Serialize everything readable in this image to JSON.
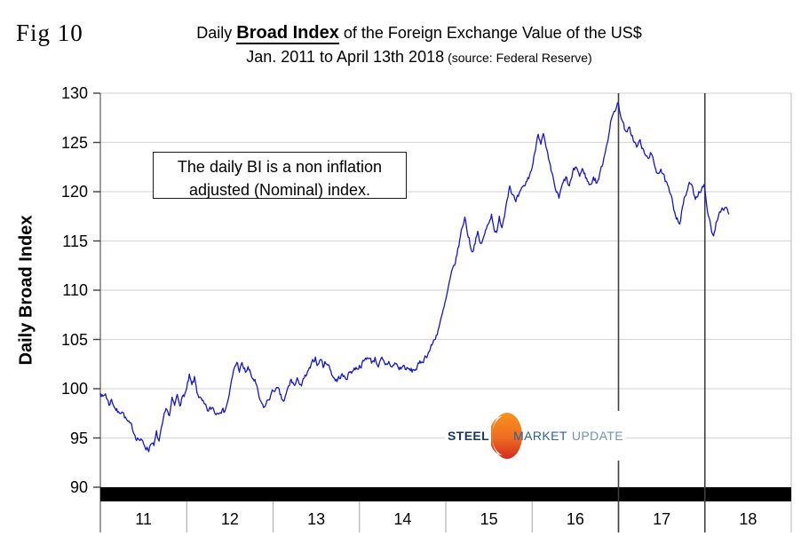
{
  "fig_label": "Fig 10",
  "title": {
    "prefix": "Daily",
    "emphasis": "Broad Index",
    "suffix": "of the Foreign Exchange Value of the US$"
  },
  "subtitle": {
    "range": "Jan. 2011 to April 13th 2018",
    "source": "(source: Federal Reserve)"
  },
  "annotation": {
    "line1": "The daily BI is a non inflation",
    "line2": "adjusted (Nominal) index."
  },
  "logo": {
    "word1": "STEEL",
    "word2": "MARKET",
    "word3": "UPDATE"
  },
  "chart_data": {
    "type": "line",
    "title": "Daily Broad Index of the Foreign Exchange Value of the US$",
    "subtitle": "Jan. 2011 to April 13th 2018",
    "source": "Federal Reserve",
    "ylabel": "Daily Broad Index",
    "xlabel": "",
    "ylim": [
      90,
      130
    ],
    "yticks": [
      90,
      95,
      100,
      105,
      110,
      115,
      120,
      125,
      130
    ],
    "xticks": [
      "11",
      "12",
      "13",
      "14",
      "15",
      "16",
      "17",
      "18"
    ],
    "x_range_years": [
      2011,
      2019
    ],
    "grid": "horizontal",
    "legend": "none",
    "line_color": "#1515d2",
    "grid_color": "#d9d9d9",
    "axis_color": "#737373",
    "separator_color": "#b3b3b3",
    "event_line_color": "#3f3f3f",
    "event_lines_x": [
      2017.0,
      2018.0
    ],
    "baseline_bar": {
      "value": 90,
      "color": "#000000"
    },
    "daily_noise": 0.3,
    "series": [
      {
        "name": "Daily Broad Index (Nominal)",
        "anchors": [
          [
            2011.0,
            99.8
          ],
          [
            2011.03,
            99.1
          ],
          [
            2011.06,
            99.5
          ],
          [
            2011.1,
            98.4
          ],
          [
            2011.13,
            98.9
          ],
          [
            2011.17,
            98.1
          ],
          [
            2011.21,
            97.5
          ],
          [
            2011.25,
            97.9
          ],
          [
            2011.29,
            97.0
          ],
          [
            2011.33,
            96.4
          ],
          [
            2011.37,
            96.0
          ],
          [
            2011.41,
            95.2
          ],
          [
            2011.45,
            94.9
          ],
          [
            2011.49,
            94.5
          ],
          [
            2011.53,
            94.1
          ],
          [
            2011.56,
            93.8
          ],
          [
            2011.59,
            94.7
          ],
          [
            2011.62,
            94.1
          ],
          [
            2011.65,
            95.4
          ],
          [
            2011.68,
            94.6
          ],
          [
            2011.71,
            95.8
          ],
          [
            2011.74,
            97.1
          ],
          [
            2011.77,
            98.0
          ],
          [
            2011.8,
            97.2
          ],
          [
            2011.83,
            98.8
          ],
          [
            2011.86,
            98.2
          ],
          [
            2011.89,
            99.3
          ],
          [
            2011.92,
            98.6
          ],
          [
            2011.96,
            99.2
          ],
          [
            2012.0,
            99.9
          ],
          [
            2012.03,
            101.2
          ],
          [
            2012.06,
            100.2
          ],
          [
            2012.09,
            101.0
          ],
          [
            2012.12,
            99.7
          ],
          [
            2012.16,
            98.9
          ],
          [
            2012.2,
            98.3
          ],
          [
            2012.25,
            97.7
          ],
          [
            2012.3,
            98.1
          ],
          [
            2012.34,
            97.5
          ],
          [
            2012.39,
            98.0
          ],
          [
            2012.43,
            97.7
          ],
          [
            2012.47,
            98.5
          ],
          [
            2012.51,
            100.2
          ],
          [
            2012.55,
            102.0
          ],
          [
            2012.58,
            102.7
          ],
          [
            2012.61,
            101.9
          ],
          [
            2012.64,
            102.4
          ],
          [
            2012.68,
            101.7
          ],
          [
            2012.71,
            102.1
          ],
          [
            2012.75,
            101.2
          ],
          [
            2012.79,
            100.8
          ],
          [
            2012.82,
            99.7
          ],
          [
            2012.86,
            98.4
          ],
          [
            2012.9,
            98.1
          ],
          [
            2012.94,
            98.8
          ],
          [
            2012.97,
            99.3
          ],
          [
            2013.02,
            100.0
          ],
          [
            2013.06,
            99.8
          ],
          [
            2013.1,
            98.9
          ],
          [
            2013.13,
            98.7
          ],
          [
            2013.17,
            99.9
          ],
          [
            2013.21,
            100.9
          ],
          [
            2013.25,
            100.3
          ],
          [
            2013.29,
            100.9
          ],
          [
            2013.33,
            100.4
          ],
          [
            2013.37,
            101.1
          ],
          [
            2013.41,
            101.7
          ],
          [
            2013.45,
            102.4
          ],
          [
            2013.49,
            103.2
          ],
          [
            2013.52,
            102.4
          ],
          [
            2013.55,
            103.1
          ],
          [
            2013.58,
            102.3
          ],
          [
            2013.62,
            102.8
          ],
          [
            2013.66,
            102.0
          ],
          [
            2013.7,
            101.2
          ],
          [
            2013.74,
            100.8
          ],
          [
            2013.79,
            101.4
          ],
          [
            2013.84,
            101.0
          ],
          [
            2013.89,
            101.7
          ],
          [
            2013.94,
            102.0
          ],
          [
            2014.0,
            102.3
          ],
          [
            2014.05,
            102.7
          ],
          [
            2014.1,
            103.3
          ],
          [
            2014.14,
            102.7
          ],
          [
            2014.18,
            103.1
          ],
          [
            2014.22,
            102.4
          ],
          [
            2014.26,
            102.9
          ],
          [
            2014.3,
            102.2
          ],
          [
            2014.34,
            102.7
          ],
          [
            2014.38,
            102.2
          ],
          [
            2014.42,
            102.6
          ],
          [
            2014.46,
            102.0
          ],
          [
            2014.51,
            102.3
          ],
          [
            2014.56,
            101.9
          ],
          [
            2014.61,
            101.8
          ],
          [
            2014.66,
            102.1
          ],
          [
            2014.7,
            102.5
          ],
          [
            2014.75,
            103.1
          ],
          [
            2014.8,
            103.7
          ],
          [
            2014.85,
            104.6
          ],
          [
            2014.9,
            105.7
          ],
          [
            2014.95,
            107.1
          ],
          [
            2015.0,
            108.9
          ],
          [
            2015.04,
            110.6
          ],
          [
            2015.08,
            112.0
          ],
          [
            2015.12,
            113.2
          ],
          [
            2015.16,
            115.0
          ],
          [
            2015.19,
            116.4
          ],
          [
            2015.22,
            117.4
          ],
          [
            2015.25,
            116.0
          ],
          [
            2015.28,
            114.8
          ],
          [
            2015.31,
            113.9
          ],
          [
            2015.34,
            115.0
          ],
          [
            2015.37,
            115.7
          ],
          [
            2015.4,
            114.6
          ],
          [
            2015.44,
            115.3
          ],
          [
            2015.47,
            116.2
          ],
          [
            2015.5,
            117.1
          ],
          [
            2015.53,
            117.7
          ],
          [
            2015.56,
            116.4
          ],
          [
            2015.59,
            115.6
          ],
          [
            2015.62,
            117.2
          ],
          [
            2015.65,
            116.6
          ],
          [
            2015.68,
            117.7
          ],
          [
            2015.71,
            119.5
          ],
          [
            2015.74,
            120.7
          ],
          [
            2015.77,
            119.9
          ],
          [
            2015.81,
            118.8
          ],
          [
            2015.85,
            119.6
          ],
          [
            2015.89,
            120.2
          ],
          [
            2015.93,
            120.9
          ],
          [
            2015.97,
            121.7
          ],
          [
            2016.01,
            122.8
          ],
          [
            2016.04,
            124.5
          ],
          [
            2016.07,
            126.1
          ],
          [
            2016.1,
            125.1
          ],
          [
            2016.13,
            125.7
          ],
          [
            2016.16,
            124.4
          ],
          [
            2016.2,
            122.7
          ],
          [
            2016.24,
            121.3
          ],
          [
            2016.28,
            120.0
          ],
          [
            2016.31,
            119.3
          ],
          [
            2016.35,
            120.6
          ],
          [
            2016.39,
            121.4
          ],
          [
            2016.43,
            120.5
          ],
          [
            2016.47,
            121.8
          ],
          [
            2016.51,
            122.6
          ],
          [
            2016.55,
            121.6
          ],
          [
            2016.59,
            122.3
          ],
          [
            2016.63,
            121.3
          ],
          [
            2016.67,
            120.6
          ],
          [
            2016.71,
            121.5
          ],
          [
            2016.75,
            120.9
          ],
          [
            2016.79,
            121.9
          ],
          [
            2016.83,
            123.5
          ],
          [
            2016.87,
            125.2
          ],
          [
            2016.91,
            126.9
          ],
          [
            2016.95,
            128.2
          ],
          [
            2016.99,
            129.0
          ],
          [
            2017.03,
            127.8
          ],
          [
            2017.06,
            126.7
          ],
          [
            2017.09,
            125.8
          ],
          [
            2017.13,
            126.4
          ],
          [
            2017.17,
            125.4
          ],
          [
            2017.21,
            124.5
          ],
          [
            2017.25,
            125.1
          ],
          [
            2017.29,
            124.0
          ],
          [
            2017.33,
            123.4
          ],
          [
            2017.37,
            123.9
          ],
          [
            2017.41,
            122.8
          ],
          [
            2017.45,
            122.0
          ],
          [
            2017.49,
            122.4
          ],
          [
            2017.53,
            121.3
          ],
          [
            2017.57,
            120.4
          ],
          [
            2017.61,
            119.3
          ],
          [
            2017.64,
            118.3
          ],
          [
            2017.68,
            117.4
          ],
          [
            2017.71,
            116.9
          ],
          [
            2017.74,
            118.3
          ],
          [
            2017.77,
            119.5
          ],
          [
            2017.8,
            120.2
          ],
          [
            2017.83,
            120.9
          ],
          [
            2017.86,
            120.1
          ],
          [
            2017.89,
            119.4
          ],
          [
            2017.92,
            119.9
          ],
          [
            2017.96,
            120.3
          ],
          [
            2017.99,
            120.5
          ],
          [
            2018.02,
            118.9
          ],
          [
            2018.05,
            117.2
          ],
          [
            2018.08,
            115.8
          ],
          [
            2018.1,
            115.3
          ],
          [
            2018.13,
            116.9
          ],
          [
            2018.16,
            117.8
          ],
          [
            2018.19,
            118.4
          ],
          [
            2018.22,
            117.9
          ],
          [
            2018.25,
            118.3
          ],
          [
            2018.28,
            117.5
          ]
        ]
      }
    ]
  }
}
